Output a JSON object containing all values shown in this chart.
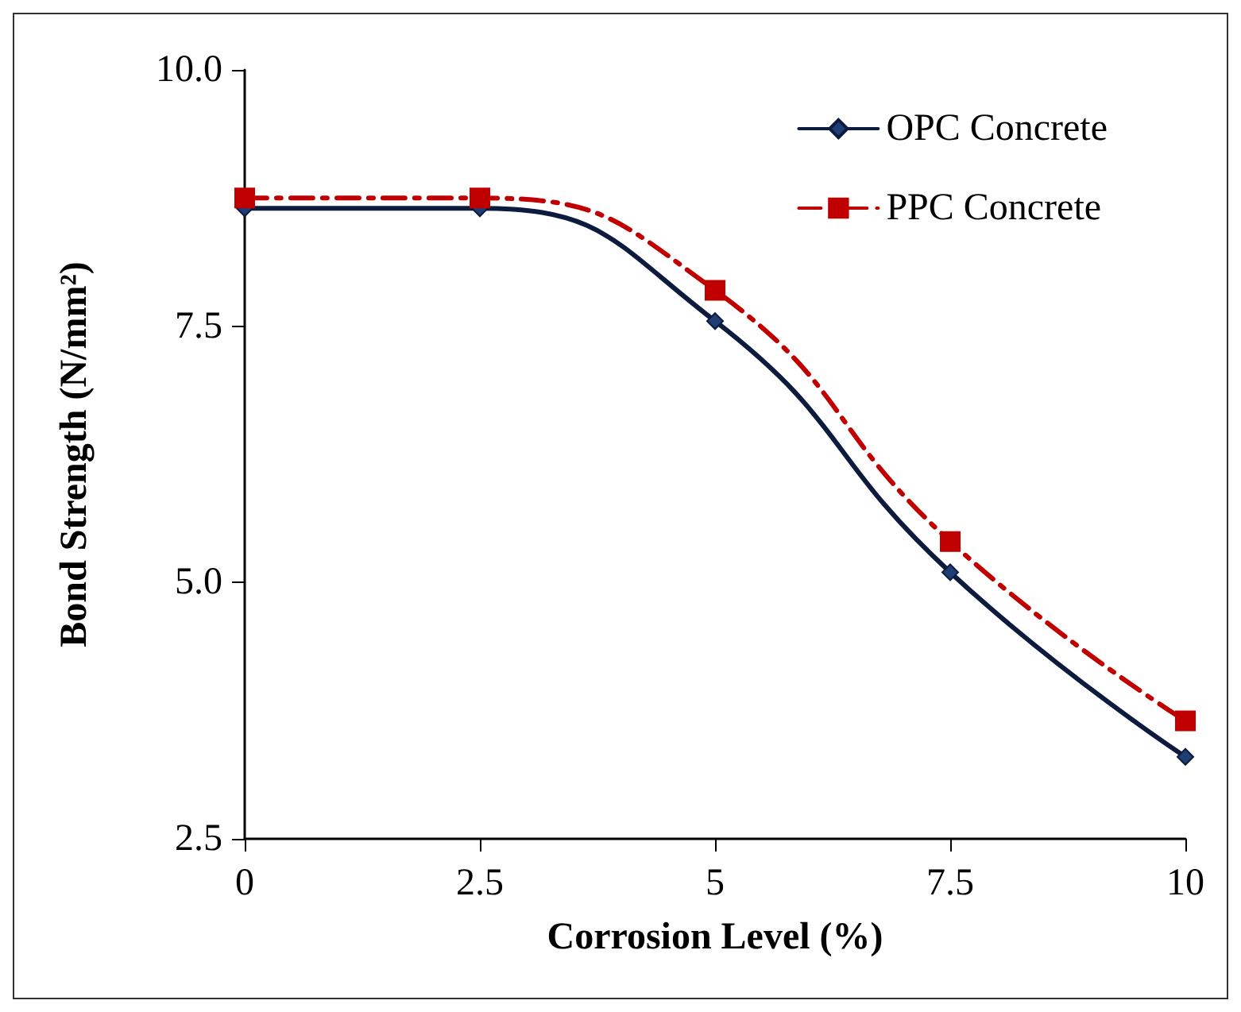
{
  "chart_data": {
    "type": "line",
    "xlabel": "Corrosion Level (%)",
    "ylabel": "Bond Strength (N/mm²)",
    "x": [
      0,
      2.5,
      5,
      7.5,
      10
    ],
    "series": [
      {
        "name": "OPC Concrete",
        "color": "#0d1b3e",
        "marker": "diamond",
        "line_style": "solid",
        "values": [
          8.65,
          8.65,
          7.55,
          5.1,
          3.3
        ]
      },
      {
        "name": "PPC Concrete",
        "color": "#c00000",
        "marker": "square",
        "line_style": "dashed",
        "values": [
          8.75,
          8.75,
          7.85,
          5.4,
          3.65
        ]
      }
    ],
    "xlim": [
      0,
      10
    ],
    "xticks": [
      0,
      2.5,
      5,
      7.5,
      10
    ],
    "ylim": [
      2.5,
      10
    ],
    "yticks": [
      2.5,
      {
        "value": 5,
        "label": "5.0"
      },
      7.5,
      {
        "value": 10,
        "label": "10.0"
      }
    ],
    "grid": false,
    "legend": "top right"
  }
}
